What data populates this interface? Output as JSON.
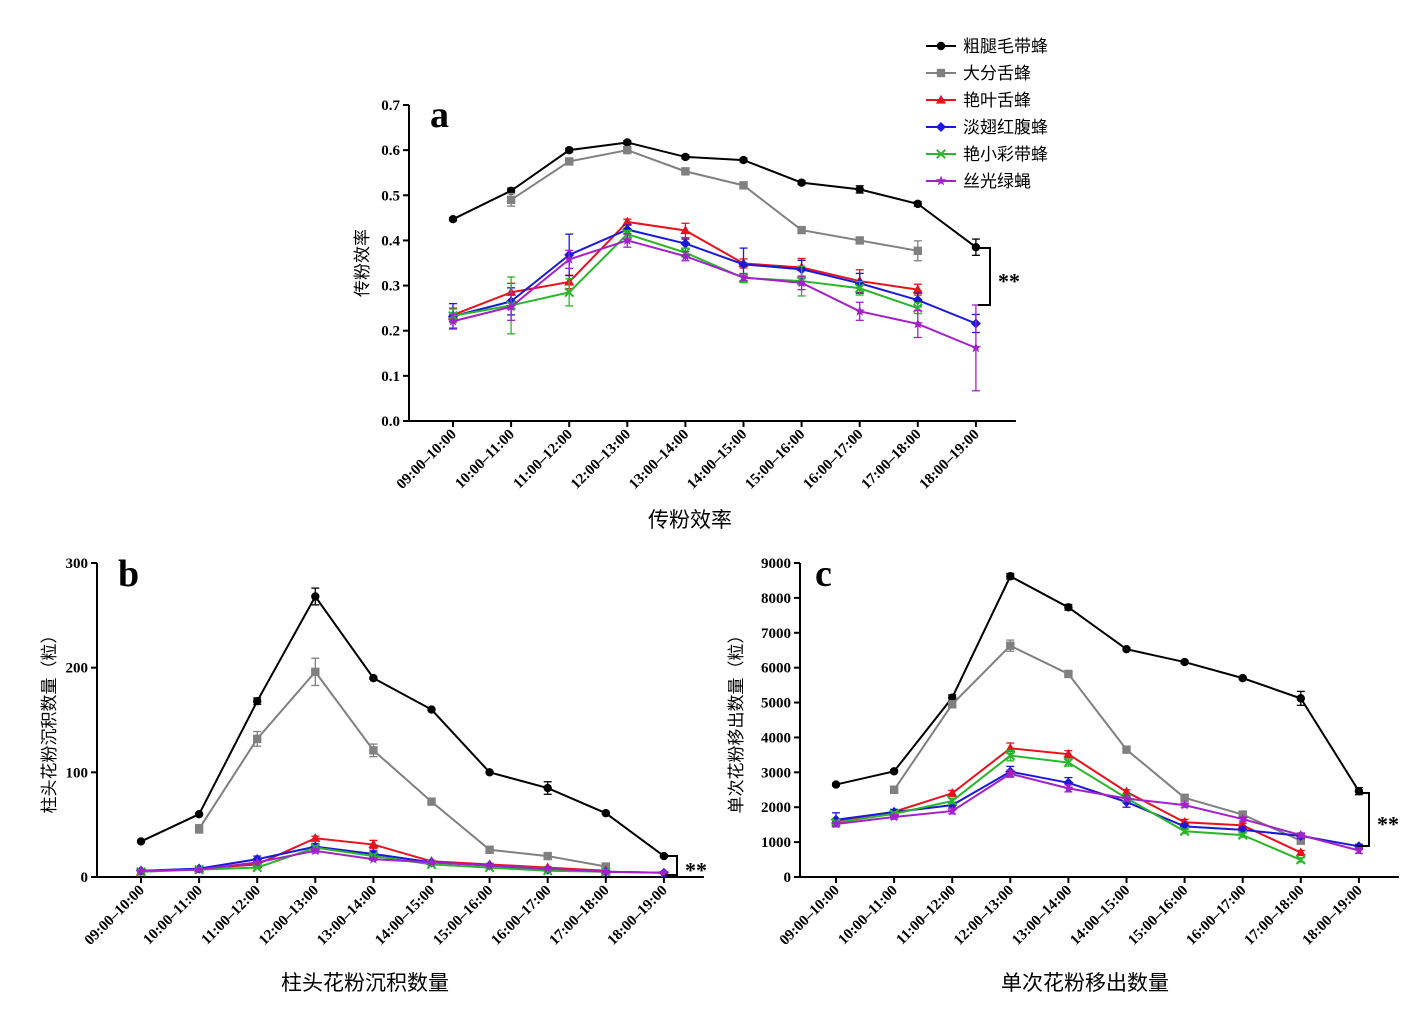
{
  "legend": {
    "items": [
      {
        "name": "粗腿毛带蜂",
        "color": "#000000",
        "marker": "circle"
      },
      {
        "name": "大分舌蜂",
        "color": "#808080",
        "marker": "square"
      },
      {
        "name": "艳叶舌蜂",
        "color": "#e8111c",
        "marker": "triangle"
      },
      {
        "name": "淡翅红腹蜂",
        "color": "#1a19d8",
        "marker": "diamond"
      },
      {
        "name": "艳小彩带蜂",
        "color": "#2bb52b",
        "marker": "x"
      },
      {
        "name": "丝光绿蝇",
        "color": "#a321c9",
        "marker": "star"
      }
    ]
  },
  "chart_data": [
    {
      "panel_label": "a",
      "type": "line",
      "title": "传粉效率",
      "ylabel": "传粉效率",
      "ylim": [
        0,
        0.7
      ],
      "yticks": [
        "0.0",
        "0.1",
        "0.2",
        "0.3",
        "0.4",
        "0.5",
        "0.6",
        "0.7"
      ],
      "categories": [
        "09:00–10:00",
        "10:00–11:00",
        "11:00–12:00",
        "12:00–13:00",
        "13:00–14:00",
        "14:00–15:00",
        "15:00–16:00",
        "16:00–17:00",
        "17:00–18:00",
        "18:00–19:00"
      ],
      "significance": "**",
      "series": [
        {
          "name": "粗腿毛带蜂",
          "values": [
            0.447,
            0.51,
            0.6,
            0.617,
            0.585,
            0.578,
            0.528,
            0.513,
            0.481,
            0.385
          ],
          "errors": [
            0.003,
            0.006,
            0.004,
            0.004,
            0.004,
            0.004,
            0.004,
            0.008,
            0.005,
            0.018
          ]
        },
        {
          "name": "大分舌蜂",
          "values": [
            null,
            0.49,
            0.575,
            0.6,
            0.553,
            0.522,
            0.423,
            0.4,
            0.377,
            null
          ],
          "errors": [
            null,
            0.014,
            0.006,
            0.004,
            0.004,
            0.004,
            0.004,
            0.006,
            0.022,
            null
          ]
        },
        {
          "name": "艳叶舌蜂",
          "values": [
            0.235,
            0.285,
            0.308,
            0.441,
            0.422,
            0.349,
            0.34,
            0.31,
            0.291,
            null
          ],
          "errors": [
            0.015,
            0.02,
            0.015,
            0.006,
            0.016,
            0.01,
            0.02,
            0.025,
            0.012,
            null
          ]
        },
        {
          "name": "淡翅红腹蜂",
          "values": [
            0.232,
            0.265,
            0.368,
            0.424,
            0.393,
            0.347,
            0.336,
            0.305,
            0.268,
            0.216
          ],
          "errors": [
            0.028,
            0.03,
            0.046,
            0.01,
            0.01,
            0.036,
            0.02,
            0.022,
            0.015,
            0.02
          ]
        },
        {
          "name": "艳小彩带蜂",
          "values": [
            0.233,
            0.256,
            0.285,
            0.414,
            0.373,
            0.317,
            0.31,
            0.294,
            0.25,
            null
          ],
          "errors": [
            0.015,
            0.063,
            0.03,
            0.008,
            0.01,
            0.01,
            0.033,
            0.015,
            0.012,
            null
          ]
        },
        {
          "name": "丝光绿蝇",
          "values": [
            0.221,
            0.253,
            0.358,
            0.4,
            0.365,
            0.318,
            0.306,
            0.243,
            0.215,
            0.162
          ],
          "errors": [
            0.015,
            0.03,
            0.02,
            0.015,
            0.01,
            0.008,
            0.015,
            0.02,
            0.03,
            0.095
          ]
        }
      ]
    },
    {
      "panel_label": "b",
      "type": "line",
      "title": "柱头花粉沉积数量",
      "ylabel": "柱头花粉沉积数量（粒）",
      "ylim": [
        0,
        300
      ],
      "yticks": [
        "0",
        "100",
        "200",
        "300"
      ],
      "categories": [
        "09:00–10:00",
        "10:00–11:00",
        "11:00–12:00",
        "12:00–13:00",
        "13:00–14:00",
        "14:00–15:00",
        "15:00–16:00",
        "16:00–17:00",
        "17:00–18:00",
        "18:00–19:00"
      ],
      "significance": "**",
      "series": [
        {
          "name": "粗腿毛带蜂",
          "values": [
            34,
            60,
            168,
            268,
            190,
            160,
            100,
            85,
            61,
            20
          ],
          "errors": [
            1,
            1,
            3,
            8,
            1,
            1,
            1,
            6,
            1,
            1
          ]
        },
        {
          "name": "大分舌蜂",
          "values": [
            null,
            46,
            132,
            196,
            121,
            72,
            26,
            20,
            10,
            null
          ],
          "errors": [
            null,
            4,
            7,
            13,
            6,
            1,
            1,
            1,
            1,
            null
          ]
        },
        {
          "name": "艳叶舌蜂",
          "values": [
            5,
            8,
            12,
            37,
            31,
            15,
            12,
            9,
            6,
            null
          ],
          "errors": [
            1,
            1,
            1,
            2,
            4,
            1,
            1,
            1,
            1,
            null
          ]
        },
        {
          "name": "淡翅红腹蜂",
          "values": [
            6,
            8,
            17,
            29,
            22,
            14,
            11,
            7,
            5,
            4
          ],
          "errors": [
            1,
            1,
            3,
            3,
            3,
            1,
            1,
            1,
            1,
            1
          ]
        },
        {
          "name": "艳小彩带蜂",
          "values": [
            5,
            7,
            9,
            28,
            20,
            12,
            9,
            6,
            5,
            null
          ],
          "errors": [
            1,
            1,
            1,
            2,
            2,
            1,
            1,
            1,
            1,
            null
          ]
        },
        {
          "name": "丝光绿蝇",
          "values": [
            6,
            7,
            14,
            25,
            17,
            14,
            11,
            8,
            5,
            4
          ],
          "errors": [
            1,
            1,
            1,
            2,
            1,
            1,
            1,
            1,
            1,
            1
          ]
        }
      ]
    },
    {
      "panel_label": "c",
      "type": "line",
      "title": "单次花粉移出数量",
      "ylabel": "单次花粉移出数量（粒）",
      "ylim": [
        0,
        9000
      ],
      "yticks": [
        "0",
        "1000",
        "2000",
        "3000",
        "4000",
        "5000",
        "6000",
        "7000",
        "8000",
        "9000"
      ],
      "categories": [
        "09:00–10:00",
        "10:00–11:00",
        "11:00–12:00",
        "12:00–13:00",
        "13:00–14:00",
        "14:00–15:00",
        "15:00–16:00",
        "16:00–17:00",
        "17:00–18:00",
        "18:00–19:00"
      ],
      "significance": "**",
      "series": [
        {
          "name": "粗腿毛带蜂",
          "values": [
            2650,
            3030,
            5140,
            8620,
            7730,
            6530,
            6160,
            5700,
            5120,
            2460
          ],
          "errors": [
            40,
            40,
            80,
            80,
            80,
            40,
            40,
            40,
            200,
            100
          ]
        },
        {
          "name": "大分舌蜂",
          "values": [
            null,
            2500,
            4950,
            6630,
            5820,
            3650,
            2270,
            1790,
            1040,
            null
          ],
          "errors": [
            null,
            100,
            80,
            160,
            60,
            60,
            40,
            60,
            80,
            null
          ]
        },
        {
          "name": "艳叶舌蜂",
          "values": [
            1610,
            1870,
            2400,
            3690,
            3520,
            2440,
            1570,
            1480,
            700,
            null
          ],
          "errors": [
            40,
            60,
            80,
            150,
            100,
            60,
            80,
            60,
            60,
            null
          ]
        },
        {
          "name": "淡翅红腹蜂",
          "values": [
            1640,
            1860,
            2060,
            3020,
            2700,
            2150,
            1450,
            1350,
            1180,
            880
          ],
          "errors": [
            200,
            80,
            80,
            150,
            150,
            150,
            80,
            80,
            80,
            60
          ]
        },
        {
          "name": "艳小彩带蜂",
          "values": [
            1560,
            1810,
            2180,
            3480,
            3280,
            2260,
            1310,
            1200,
            490,
            null
          ],
          "errors": [
            60,
            60,
            80,
            150,
            100,
            80,
            60,
            60,
            60,
            null
          ]
        },
        {
          "name": "丝光绿蝇",
          "values": [
            1520,
            1720,
            1890,
            2960,
            2540,
            2250,
            2060,
            1660,
            1200,
            760
          ],
          "errors": [
            60,
            60,
            80,
            100,
            100,
            80,
            60,
            60,
            60,
            80
          ]
        }
      ]
    }
  ]
}
